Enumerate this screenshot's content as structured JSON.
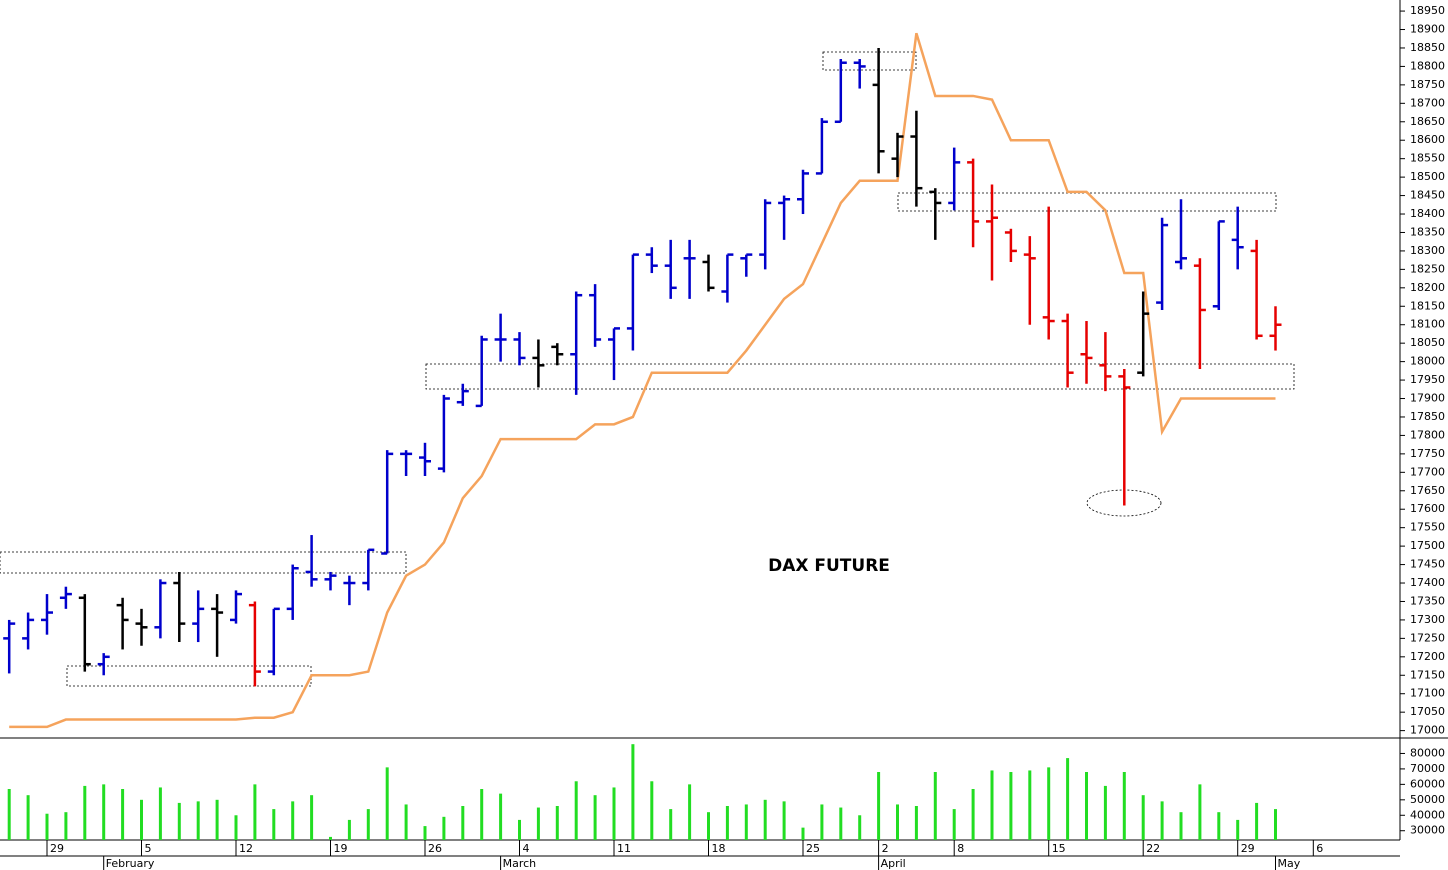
{
  "chart_data": [
    {
      "type": "ohlc",
      "title": "DAX FUTURE",
      "categories": [
        null,
        null,
        "29",
        null,
        null,
        null,
        null,
        "5",
        null,
        null,
        null,
        null,
        "12",
        null,
        null,
        null,
        null,
        "19",
        null,
        null,
        null,
        null,
        "26",
        null,
        null,
        null,
        null,
        "4",
        null,
        null,
        null,
        null,
        "11",
        null,
        null,
        null,
        null,
        "18",
        null,
        null,
        null,
        null,
        "25",
        null,
        null,
        null,
        "2",
        null,
        null,
        null,
        "8",
        null,
        null,
        null,
        null,
        "15",
        null,
        null,
        null,
        null,
        "22",
        null,
        null,
        null,
        null,
        "29",
        null,
        null,
        null,
        "6"
      ],
      "months": [
        null,
        null,
        null,
        null,
        null,
        "February",
        null,
        null,
        null,
        null,
        null,
        null,
        null,
        null,
        null,
        null,
        null,
        null,
        null,
        null,
        null,
        null,
        null,
        null,
        null,
        null,
        "March",
        null,
        null,
        null,
        null,
        null,
        null,
        null,
        null,
        null,
        null,
        null,
        null,
        null,
        null,
        null,
        null,
        null,
        null,
        null,
        "April",
        null,
        null,
        null,
        null,
        null,
        null,
        null,
        null,
        null,
        null,
        null,
        null,
        null,
        null,
        null,
        null,
        null,
        null,
        null,
        null,
        "May",
        null,
        null
      ],
      "open": [
        17250,
        17250,
        17300,
        17360,
        17360,
        17180,
        17340,
        17290,
        17280,
        17400,
        17290,
        17330,
        17300,
        17340,
        17160,
        17330,
        17430,
        17410,
        17400,
        17400,
        17480,
        17750,
        17740,
        17710,
        17890,
        17880,
        18060,
        18060,
        18010,
        18040,
        18020,
        18180,
        18060,
        18090,
        18290,
        18260,
        18280,
        18270,
        18190,
        18280,
        18290,
        18430,
        18440,
        18510,
        18650,
        18810,
        18750,
        18550,
        18610,
        18460,
        18430,
        18540,
        18380,
        18350,
        18290,
        18120,
        18110,
        18020,
        17990,
        17960,
        17970,
        18160,
        18270,
        18260,
        18150,
        18330,
        18300,
        18070,
        null,
        null
      ],
      "high": [
        17300,
        17320,
        17370,
        17390,
        17370,
        17210,
        17360,
        17330,
        17410,
        17430,
        17380,
        17370,
        17380,
        17350,
        17330,
        17450,
        17530,
        17430,
        17420,
        17490,
        17760,
        17760,
        17780,
        17910,
        17940,
        18070,
        18130,
        18080,
        18060,
        18050,
        18190,
        18210,
        18090,
        18290,
        18310,
        18330,
        18330,
        18290,
        18290,
        18290,
        18440,
        18450,
        18520,
        18660,
        18820,
        18820,
        18850,
        18620,
        18680,
        18470,
        18580,
        18550,
        18480,
        18360,
        18340,
        18420,
        18130,
        18110,
        18080,
        17980,
        18190,
        18390,
        18440,
        18280,
        18380,
        18420,
        18330,
        18150,
        null,
        null
      ],
      "low": [
        17155,
        17220,
        17260,
        17330,
        17160,
        17150,
        17220,
        17230,
        17250,
        17240,
        17240,
        17200,
        17290,
        17120,
        17150,
        17300,
        17390,
        17380,
        17340,
        17380,
        17480,
        17690,
        17690,
        17700,
        17880,
        17880,
        18000,
        17990,
        17930,
        17990,
        17910,
        18040,
        17950,
        18030,
        18240,
        18170,
        18170,
        18190,
        18160,
        18230,
        18250,
        18330,
        18400,
        18510,
        18650,
        18740,
        18510,
        18500,
        18420,
        18330,
        18410,
        18310,
        18220,
        18270,
        18100,
        18060,
        17930,
        17940,
        17920,
        17610,
        17960,
        18140,
        18250,
        17980,
        18140,
        18250,
        18060,
        18030,
        null,
        null
      ],
      "close": [
        17290,
        17300,
        17320,
        17370,
        17180,
        17200,
        17300,
        17280,
        17400,
        17290,
        17330,
        17320,
        17370,
        17160,
        17330,
        17440,
        17410,
        17420,
        17400,
        17490,
        17750,
        17750,
        17730,
        17900,
        17920,
        18060,
        18060,
        18010,
        17990,
        18020,
        18180,
        18060,
        18090,
        18290,
        18260,
        18200,
        18280,
        18200,
        18290,
        18290,
        18430,
        18440,
        18510,
        18650,
        18810,
        18800,
        18570,
        18610,
        18470,
        18430,
        18540,
        18380,
        18390,
        18300,
        18280,
        18110,
        17970,
        18010,
        17960,
        17930,
        18130,
        18370,
        18280,
        18140,
        18380,
        18310,
        18070,
        18100,
        null,
        null
      ],
      "colors": [
        "#0000cc",
        "#0000cc",
        "#0000cc",
        "#0000cc",
        "#000000",
        "#0000cc",
        "#000000",
        "#000000",
        "#0000cc",
        "#000000",
        "#0000cc",
        "#000000",
        "#0000cc",
        "#e60000",
        "#0000cc",
        "#0000cc",
        "#0000cc",
        "#0000cc",
        "#0000cc",
        "#0000cc",
        "#0000cc",
        "#0000cc",
        "#0000cc",
        "#0000cc",
        "#0000cc",
        "#0000cc",
        "#0000cc",
        "#0000cc",
        "#000000",
        "#000000",
        "#0000cc",
        "#0000cc",
        "#0000cc",
        "#0000cc",
        "#0000cc",
        "#0000cc",
        "#0000cc",
        "#000000",
        "#0000cc",
        "#0000cc",
        "#0000cc",
        "#0000cc",
        "#0000cc",
        "#0000cc",
        "#0000cc",
        "#0000cc",
        "#000000",
        "#000000",
        "#000000",
        "#000000",
        "#0000cc",
        "#e60000",
        "#e60000",
        "#e60000",
        "#e60000",
        "#e60000",
        "#e60000",
        "#e60000",
        "#e60000",
        "#e60000",
        "#000000",
        "#0000cc",
        "#0000cc",
        "#e60000",
        "#0000cc",
        "#0000cc",
        "#e60000",
        "#e60000",
        null,
        null
      ],
      "line": {
        "color": "#f5a35c",
        "values": [
          17010,
          17010,
          17010,
          17030,
          17030,
          17030,
          17030,
          17030,
          17030,
          17030,
          17030,
          17030,
          17030,
          17035,
          17035,
          17050,
          17150,
          17150,
          17150,
          17160,
          17320,
          17420,
          17450,
          17510,
          17630,
          17690,
          17790,
          17790,
          17790,
          17790,
          17790,
          17830,
          17830,
          17850,
          17970,
          17970,
          17970,
          17970,
          17970,
          18030,
          18100,
          18170,
          18210,
          18320,
          18430,
          18490,
          18490,
          18490,
          18890,
          18720,
          18720,
          18720,
          18710,
          18600,
          18600,
          18600,
          18460,
          18460,
          18410,
          18240,
          18240,
          17810,
          17900,
          17900,
          17900,
          17900,
          17900,
          17900,
          null,
          null
        ]
      },
      "ylim": [
        16980,
        18980
      ],
      "yticks": [
        17000,
        17050,
        17100,
        17150,
        17200,
        17250,
        17300,
        17350,
        17400,
        17450,
        17500,
        17550,
        17600,
        17650,
        17700,
        17750,
        17800,
        17850,
        17900,
        17950,
        18000,
        18050,
        18100,
        18150,
        18200,
        18250,
        18300,
        18350,
        18400,
        18450,
        18500,
        18550,
        18600,
        18650,
        18700,
        18750,
        18800,
        18850,
        18900,
        18950
      ]
    },
    {
      "type": "bar",
      "color": "#22dd22",
      "values": [
        57000,
        53000,
        41000,
        42000,
        59000,
        60000,
        57000,
        50000,
        58000,
        48000,
        49000,
        50000,
        40000,
        60000,
        44000,
        49000,
        53000,
        26000,
        37000,
        44000,
        71000,
        47000,
        33000,
        39000,
        46000,
        57000,
        54000,
        37000,
        45000,
        46000,
        62000,
        53000,
        58000,
        86000,
        62000,
        44000,
        60000,
        42000,
        46000,
        47000,
        50000,
        49000,
        32000,
        47000,
        45000,
        40000,
        68000,
        47000,
        46000,
        68000,
        44000,
        57000,
        69000,
        68000,
        69000,
        71000,
        77000,
        68000,
        59000,
        68000,
        53000,
        49000,
        42000,
        60000,
        42000,
        37000,
        48000,
        44000,
        null,
        null
      ],
      "ylim": [
        24000,
        90000
      ],
      "yticks": [
        30000,
        40000,
        50000,
        60000,
        70000,
        80000
      ]
    }
  ]
}
